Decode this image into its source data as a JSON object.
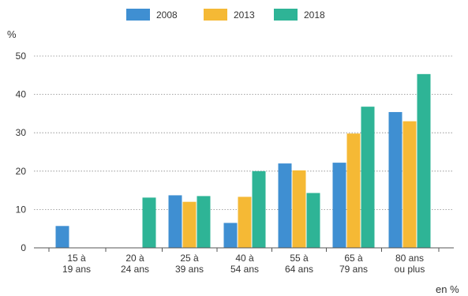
{
  "chart_data": {
    "type": "bar",
    "title": "",
    "ylabel": "%",
    "xlabel": "",
    "footer": "en %",
    "ylim": [
      0,
      50
    ],
    "yticks": [
      0,
      10,
      20,
      30,
      40,
      50
    ],
    "grid": true,
    "legend_position": "top",
    "categories": [
      [
        "15 à",
        "19 ans"
      ],
      [
        "20 à",
        "24 ans"
      ],
      [
        "25 à",
        "39 ans"
      ],
      [
        "40 à",
        "54 ans"
      ],
      [
        "55 à",
        "64 ans"
      ],
      [
        "65 à",
        "79 ans"
      ],
      [
        "80 ans",
        "ou plus"
      ]
    ],
    "series": [
      {
        "name": "2008",
        "color": "#3f8fd2",
        "values": [
          5.7,
          0,
          13.7,
          6.5,
          22,
          22.2,
          35.4
        ]
      },
      {
        "name": "2013",
        "color": "#f5b935",
        "values": [
          0,
          0,
          12,
          13.3,
          20.2,
          29.8,
          33
        ]
      },
      {
        "name": "2018",
        "color": "#2eb496",
        "values": [
          0,
          13.1,
          13.5,
          20,
          14.3,
          36.8,
          45.3
        ]
      }
    ]
  }
}
